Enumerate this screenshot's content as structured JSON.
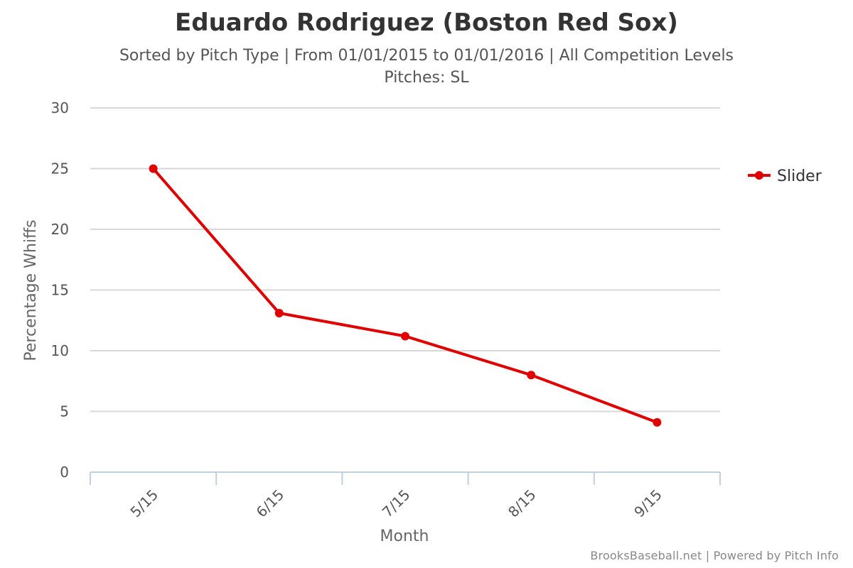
{
  "header": {
    "title": "Eduardo Rodriguez (Boston Red Sox)",
    "subtitle_line1": "Sorted by Pitch Type | From 01/01/2015 to 01/01/2016 | All Competition Levels",
    "subtitle_line2": "Pitches: SL"
  },
  "credit": "BrooksBaseball.net | Powered by Pitch Info",
  "colors": {
    "series": "#e00000",
    "grid": "#d8d8d8",
    "axis": "#c0d0e0"
  },
  "chart_data": {
    "type": "line",
    "title": "Eduardo Rodriguez (Boston Red Sox)",
    "subtitle": "Sorted by Pitch Type | From 01/01/2015 to 01/01/2016 | All Competition Levels Pitches: SL",
    "xlabel": "Month",
    "ylabel": "Percentage Whiffs",
    "categories": [
      "5/15",
      "6/15",
      "7/15",
      "8/15",
      "9/15"
    ],
    "ylim": [
      0,
      30
    ],
    "yticks": [
      "0",
      "5",
      "10",
      "15",
      "20",
      "25",
      "30"
    ],
    "grid": true,
    "legend_position": "right",
    "series": [
      {
        "name": "Slider",
        "values": [
          25.0,
          13.1,
          11.2,
          8.0,
          4.1
        ]
      }
    ]
  }
}
